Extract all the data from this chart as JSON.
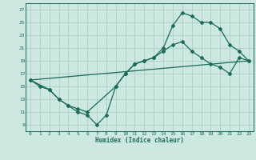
{
  "xlabel": "Humidex (Indice chaleur)",
  "bg_color": "#cce8e0",
  "line_color": "#1a6b5a",
  "grid_color": "#aacfc5",
  "xlim": [
    -0.5,
    23.5
  ],
  "ylim": [
    8.0,
    28.0
  ],
  "xticks": [
    0,
    1,
    2,
    3,
    4,
    5,
    6,
    7,
    8,
    9,
    10,
    11,
    12,
    13,
    14,
    15,
    16,
    17,
    18,
    19,
    20,
    21,
    22,
    23
  ],
  "yticks": [
    9,
    11,
    13,
    15,
    17,
    19,
    21,
    23,
    25,
    27
  ],
  "line1_x": [
    0,
    1,
    2,
    3,
    4,
    5,
    6,
    7,
    8,
    9,
    10,
    11,
    12,
    13,
    14,
    15,
    16,
    17,
    18,
    19,
    20,
    21,
    22,
    23
  ],
  "line1_y": [
    16.0,
    15.0,
    14.5,
    13.0,
    12.0,
    11.0,
    10.5,
    9.0,
    10.5,
    15.0,
    17.0,
    18.5,
    19.0,
    19.5,
    20.5,
    21.5,
    22.0,
    20.5,
    19.5,
    18.5,
    18.0,
    17.0,
    19.5,
    19.0
  ],
  "line2_x": [
    0,
    2,
    3,
    4,
    5,
    6,
    9,
    10,
    11,
    12,
    13,
    14,
    15,
    16,
    17,
    18,
    19,
    20,
    21,
    22,
    23
  ],
  "line2_y": [
    16.0,
    14.5,
    13.0,
    12.0,
    11.5,
    11.0,
    15.0,
    17.0,
    18.5,
    19.0,
    19.5,
    21.0,
    24.5,
    26.5,
    26.0,
    25.0,
    25.0,
    24.0,
    21.5,
    20.5,
    19.0
  ],
  "line3_x": [
    0,
    23
  ],
  "line3_y": [
    16.0,
    19.0
  ]
}
